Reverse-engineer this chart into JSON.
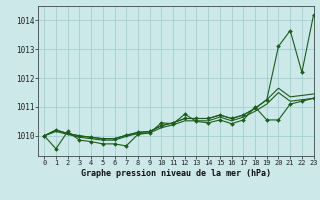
{
  "background_color": "#cce8e8",
  "plot_bg_color": "#cce8e8",
  "grid_color": "#99cccc",
  "line_color": "#1a5c1a",
  "title": "Graphe pression niveau de la mer (hPa)",
  "xlim": [
    -0.5,
    23
  ],
  "ylim": [
    1009.3,
    1014.5
  ],
  "yticks": [
    1010,
    1011,
    1012,
    1013,
    1014
  ],
  "xticks": [
    0,
    1,
    2,
    3,
    4,
    5,
    6,
    7,
    8,
    9,
    10,
    11,
    12,
    13,
    14,
    15,
    16,
    17,
    18,
    19,
    20,
    21,
    22,
    23
  ],
  "s_wavy": [
    1010.0,
    1009.55,
    1010.15,
    1009.85,
    1009.8,
    1009.72,
    1009.72,
    1009.65,
    1010.05,
    1010.1,
    1010.45,
    1010.42,
    1010.75,
    1010.5,
    1010.45,
    1010.55,
    1010.42,
    1010.55,
    1011.0,
    1010.55,
    1010.55,
    1011.1,
    1011.2,
    1011.3
  ],
  "s_mid_low": [
    1010.0,
    1010.15,
    1010.05,
    1009.95,
    1009.9,
    1009.85,
    1009.85,
    1009.98,
    1010.08,
    1010.1,
    1010.28,
    1010.38,
    1010.52,
    1010.52,
    1010.52,
    1010.65,
    1010.52,
    1010.65,
    1010.85,
    1011.1,
    1011.5,
    1011.2,
    1011.25,
    1011.3
  ],
  "s_mid_high": [
    1010.0,
    1010.2,
    1010.08,
    1010.0,
    1009.95,
    1009.9,
    1009.9,
    1010.02,
    1010.12,
    1010.15,
    1010.35,
    1010.45,
    1010.6,
    1010.6,
    1010.6,
    1010.72,
    1010.6,
    1010.72,
    1010.95,
    1011.25,
    1011.65,
    1011.35,
    1011.4,
    1011.45
  ],
  "s_top": [
    1010.0,
    1010.2,
    1010.08,
    1010.0,
    1009.95,
    1009.9,
    1009.9,
    1010.02,
    1010.12,
    1010.15,
    1010.35,
    1010.45,
    1010.6,
    1010.6,
    1010.6,
    1010.72,
    1010.6,
    1010.72,
    1010.95,
    1011.25,
    1013.1,
    1013.65,
    1012.2,
    1014.2
  ]
}
